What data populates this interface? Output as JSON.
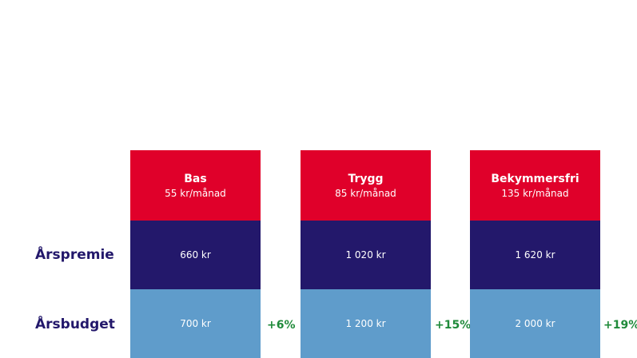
{
  "rows": {
    "premium_label": "Årspremie",
    "budget_label": "Årsbudget"
  },
  "plans": [
    {
      "name": "Bas",
      "monthly": "55 kr/månad",
      "premium": "660 kr",
      "budget": "700 kr",
      "increase": "+6%"
    },
    {
      "name": "Trygg",
      "monthly": "85 kr/månad",
      "premium": "1 020 kr",
      "budget": "1 200 kr",
      "increase": "+15%"
    },
    {
      "name": "Bekymmersfri",
      "monthly": "135 kr/månad",
      "premium": "1 620 kr",
      "budget": "2 000 kr",
      "increase": "+19%"
    }
  ],
  "colors": {
    "header_red": "#e0002a",
    "premium_navy": "#23186b",
    "budget_blue": "#5f9ccb",
    "increase_green": "#1f8a3a"
  }
}
